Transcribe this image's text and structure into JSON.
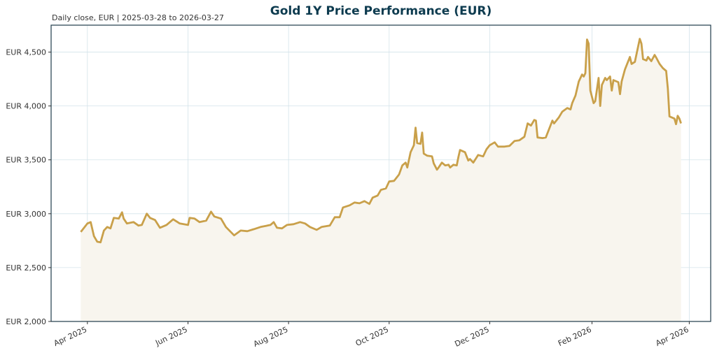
{
  "chart_data": {
    "type": "line",
    "title": "Gold 1Y Price Performance (EUR)",
    "subtitle": "Daily close, EUR | 2025-03-28 to 2026-03-27",
    "xlabel": "",
    "ylabel": "",
    "ylim": [
      2000,
      4750
    ],
    "xlim": [
      "2025-03-10",
      "2026-04-14"
    ],
    "yticks": [
      2000,
      2500,
      3000,
      3500,
      4000,
      4500
    ],
    "ytick_labels": [
      "EUR 2,000",
      "EUR 2,500",
      "EUR 3,000",
      "EUR 3,500",
      "EUR 4,000",
      "EUR 4,500"
    ],
    "xticks": [
      "2025-04-01",
      "2025-06-01",
      "2025-08-01",
      "2025-10-01",
      "2025-12-01",
      "2026-02-01",
      "2026-04-01"
    ],
    "xtick_labels": [
      "Apr 2025",
      "Jun 2025",
      "Aug 2025",
      "Oct 2025",
      "Dec 2025",
      "Feb 2026",
      "Apr 2026"
    ],
    "grid": true,
    "colors": {
      "line": "#c9a04a",
      "fill": "#f8f5ee",
      "grid": "#d3e3ea",
      "title": "#0d3b4f",
      "axis": "#1f3b4a"
    },
    "series": [
      {
        "points": [
          [
            "2025-03-28",
            2831
          ],
          [
            "2025-04-01",
            2909
          ],
          [
            "2025-04-03",
            2922
          ],
          [
            "2025-04-05",
            2792
          ],
          [
            "2025-04-07",
            2740
          ],
          [
            "2025-04-09",
            2734
          ],
          [
            "2025-04-11",
            2844
          ],
          [
            "2025-04-13",
            2877
          ],
          [
            "2025-04-15",
            2864
          ],
          [
            "2025-04-17",
            2961
          ],
          [
            "2025-04-20",
            2955
          ],
          [
            "2025-04-22",
            3013
          ],
          [
            "2025-04-23",
            2955
          ],
          [
            "2025-04-25",
            2909
          ],
          [
            "2025-04-29",
            2922
          ],
          [
            "2025-05-02",
            2890
          ],
          [
            "2025-05-04",
            2896
          ],
          [
            "2025-05-07",
            3000
          ],
          [
            "2025-05-09",
            2961
          ],
          [
            "2025-05-12",
            2942
          ],
          [
            "2025-05-15",
            2870
          ],
          [
            "2025-05-19",
            2896
          ],
          [
            "2025-05-23",
            2948
          ],
          [
            "2025-05-27",
            2909
          ],
          [
            "2025-06-01",
            2896
          ],
          [
            "2025-06-02",
            2961
          ],
          [
            "2025-06-05",
            2955
          ],
          [
            "2025-06-08",
            2922
          ],
          [
            "2025-06-12",
            2935
          ],
          [
            "2025-06-15",
            3019
          ],
          [
            "2025-06-17",
            2974
          ],
          [
            "2025-06-21",
            2955
          ],
          [
            "2025-06-24",
            2877
          ],
          [
            "2025-06-29",
            2799
          ],
          [
            "2025-07-03",
            2844
          ],
          [
            "2025-07-07",
            2838
          ],
          [
            "2025-07-11",
            2857
          ],
          [
            "2025-07-15",
            2877
          ],
          [
            "2025-07-21",
            2896
          ],
          [
            "2025-07-23",
            2922
          ],
          [
            "2025-07-25",
            2870
          ],
          [
            "2025-07-28",
            2864
          ],
          [
            "2025-07-31",
            2896
          ],
          [
            "2025-08-04",
            2903
          ],
          [
            "2025-08-08",
            2922
          ],
          [
            "2025-08-11",
            2909
          ],
          [
            "2025-08-14",
            2877
          ],
          [
            "2025-08-18",
            2850
          ],
          [
            "2025-08-21",
            2877
          ],
          [
            "2025-08-26",
            2890
          ],
          [
            "2025-08-29",
            2968
          ],
          [
            "2025-09-01",
            2968
          ],
          [
            "2025-09-03",
            3058
          ],
          [
            "2025-09-07",
            3078
          ],
          [
            "2025-09-10",
            3104
          ],
          [
            "2025-09-13",
            3097
          ],
          [
            "2025-09-16",
            3117
          ],
          [
            "2025-09-19",
            3091
          ],
          [
            "2025-09-21",
            3149
          ],
          [
            "2025-09-24",
            3169
          ],
          [
            "2025-09-26",
            3221
          ],
          [
            "2025-09-29",
            3234
          ],
          [
            "2025-10-01",
            3299
          ],
          [
            "2025-10-04",
            3305
          ],
          [
            "2025-10-07",
            3364
          ],
          [
            "2025-10-09",
            3448
          ],
          [
            "2025-10-11",
            3474
          ],
          [
            "2025-10-12",
            3429
          ],
          [
            "2025-10-14",
            3571
          ],
          [
            "2025-10-16",
            3636
          ],
          [
            "2025-10-17",
            3799
          ],
          [
            "2025-10-18",
            3656
          ],
          [
            "2025-10-20",
            3649
          ],
          [
            "2025-10-21",
            3753
          ],
          [
            "2025-10-22",
            3558
          ],
          [
            "2025-10-24",
            3539
          ],
          [
            "2025-10-27",
            3532
          ],
          [
            "2025-10-28",
            3468
          ],
          [
            "2025-10-30",
            3409
          ],
          [
            "2025-10-31",
            3429
          ],
          [
            "2025-11-02",
            3474
          ],
          [
            "2025-11-04",
            3448
          ],
          [
            "2025-11-06",
            3455
          ],
          [
            "2025-11-07",
            3429
          ],
          [
            "2025-11-09",
            3455
          ],
          [
            "2025-11-11",
            3448
          ],
          [
            "2025-11-12",
            3526
          ],
          [
            "2025-11-13",
            3591
          ],
          [
            "2025-11-16",
            3571
          ],
          [
            "2025-11-18",
            3494
          ],
          [
            "2025-11-19",
            3507
          ],
          [
            "2025-11-21",
            3474
          ],
          [
            "2025-11-24",
            3545
          ],
          [
            "2025-11-27",
            3532
          ],
          [
            "2025-11-29",
            3597
          ],
          [
            "2025-12-01",
            3636
          ],
          [
            "2025-12-04",
            3662
          ],
          [
            "2025-12-06",
            3623
          ],
          [
            "2025-12-10",
            3623
          ],
          [
            "2025-12-13",
            3630
          ],
          [
            "2025-12-16",
            3675
          ],
          [
            "2025-12-19",
            3682
          ],
          [
            "2025-12-22",
            3714
          ],
          [
            "2025-12-24",
            3838
          ],
          [
            "2025-12-26",
            3818
          ],
          [
            "2025-12-28",
            3870
          ],
          [
            "2025-12-29",
            3864
          ],
          [
            "2025-12-30",
            3708
          ],
          [
            "2026-01-02",
            3702
          ],
          [
            "2026-01-04",
            3708
          ],
          [
            "2026-01-08",
            3864
          ],
          [
            "2026-01-09",
            3838
          ],
          [
            "2026-01-12",
            3896
          ],
          [
            "2026-01-14",
            3948
          ],
          [
            "2026-01-17",
            3981
          ],
          [
            "2026-01-19",
            3968
          ],
          [
            "2026-01-20",
            4026
          ],
          [
            "2026-01-22",
            4097
          ],
          [
            "2026-01-24",
            4227
          ],
          [
            "2026-01-26",
            4292
          ],
          [
            "2026-01-27",
            4273
          ],
          [
            "2026-01-28",
            4305
          ],
          [
            "2026-01-29",
            4617
          ],
          [
            "2026-01-30",
            4578
          ],
          [
            "2026-01-31",
            4143
          ],
          [
            "2026-02-02",
            4026
          ],
          [
            "2026-02-03",
            4045
          ],
          [
            "2026-02-05",
            4260
          ],
          [
            "2026-02-06",
            4000
          ],
          [
            "2026-02-07",
            4195
          ],
          [
            "2026-02-09",
            4260
          ],
          [
            "2026-02-10",
            4240
          ],
          [
            "2026-02-12",
            4273
          ],
          [
            "2026-02-13",
            4143
          ],
          [
            "2026-02-14",
            4240
          ],
          [
            "2026-02-17",
            4221
          ],
          [
            "2026-02-18",
            4110
          ],
          [
            "2026-02-19",
            4227
          ],
          [
            "2026-02-21",
            4338
          ],
          [
            "2026-02-24",
            4455
          ],
          [
            "2026-02-25",
            4390
          ],
          [
            "2026-02-27",
            4409
          ],
          [
            "2026-03-02",
            4623
          ],
          [
            "2026-03-03",
            4578
          ],
          [
            "2026-03-04",
            4435
          ],
          [
            "2026-03-06",
            4422
          ],
          [
            "2026-03-07",
            4455
          ],
          [
            "2026-03-09",
            4416
          ],
          [
            "2026-03-11",
            4474
          ],
          [
            "2026-03-12",
            4448
          ],
          [
            "2026-03-14",
            4390
          ],
          [
            "2026-03-16",
            4351
          ],
          [
            "2026-03-18",
            4325
          ],
          [
            "2026-03-19",
            4162
          ],
          [
            "2026-03-20",
            3903
          ],
          [
            "2026-03-23",
            3883
          ],
          [
            "2026-03-24",
            3831
          ],
          [
            "2026-03-25",
            3909
          ],
          [
            "2026-03-26",
            3883
          ],
          [
            "2026-03-27",
            3838
          ]
        ]
      }
    ]
  }
}
